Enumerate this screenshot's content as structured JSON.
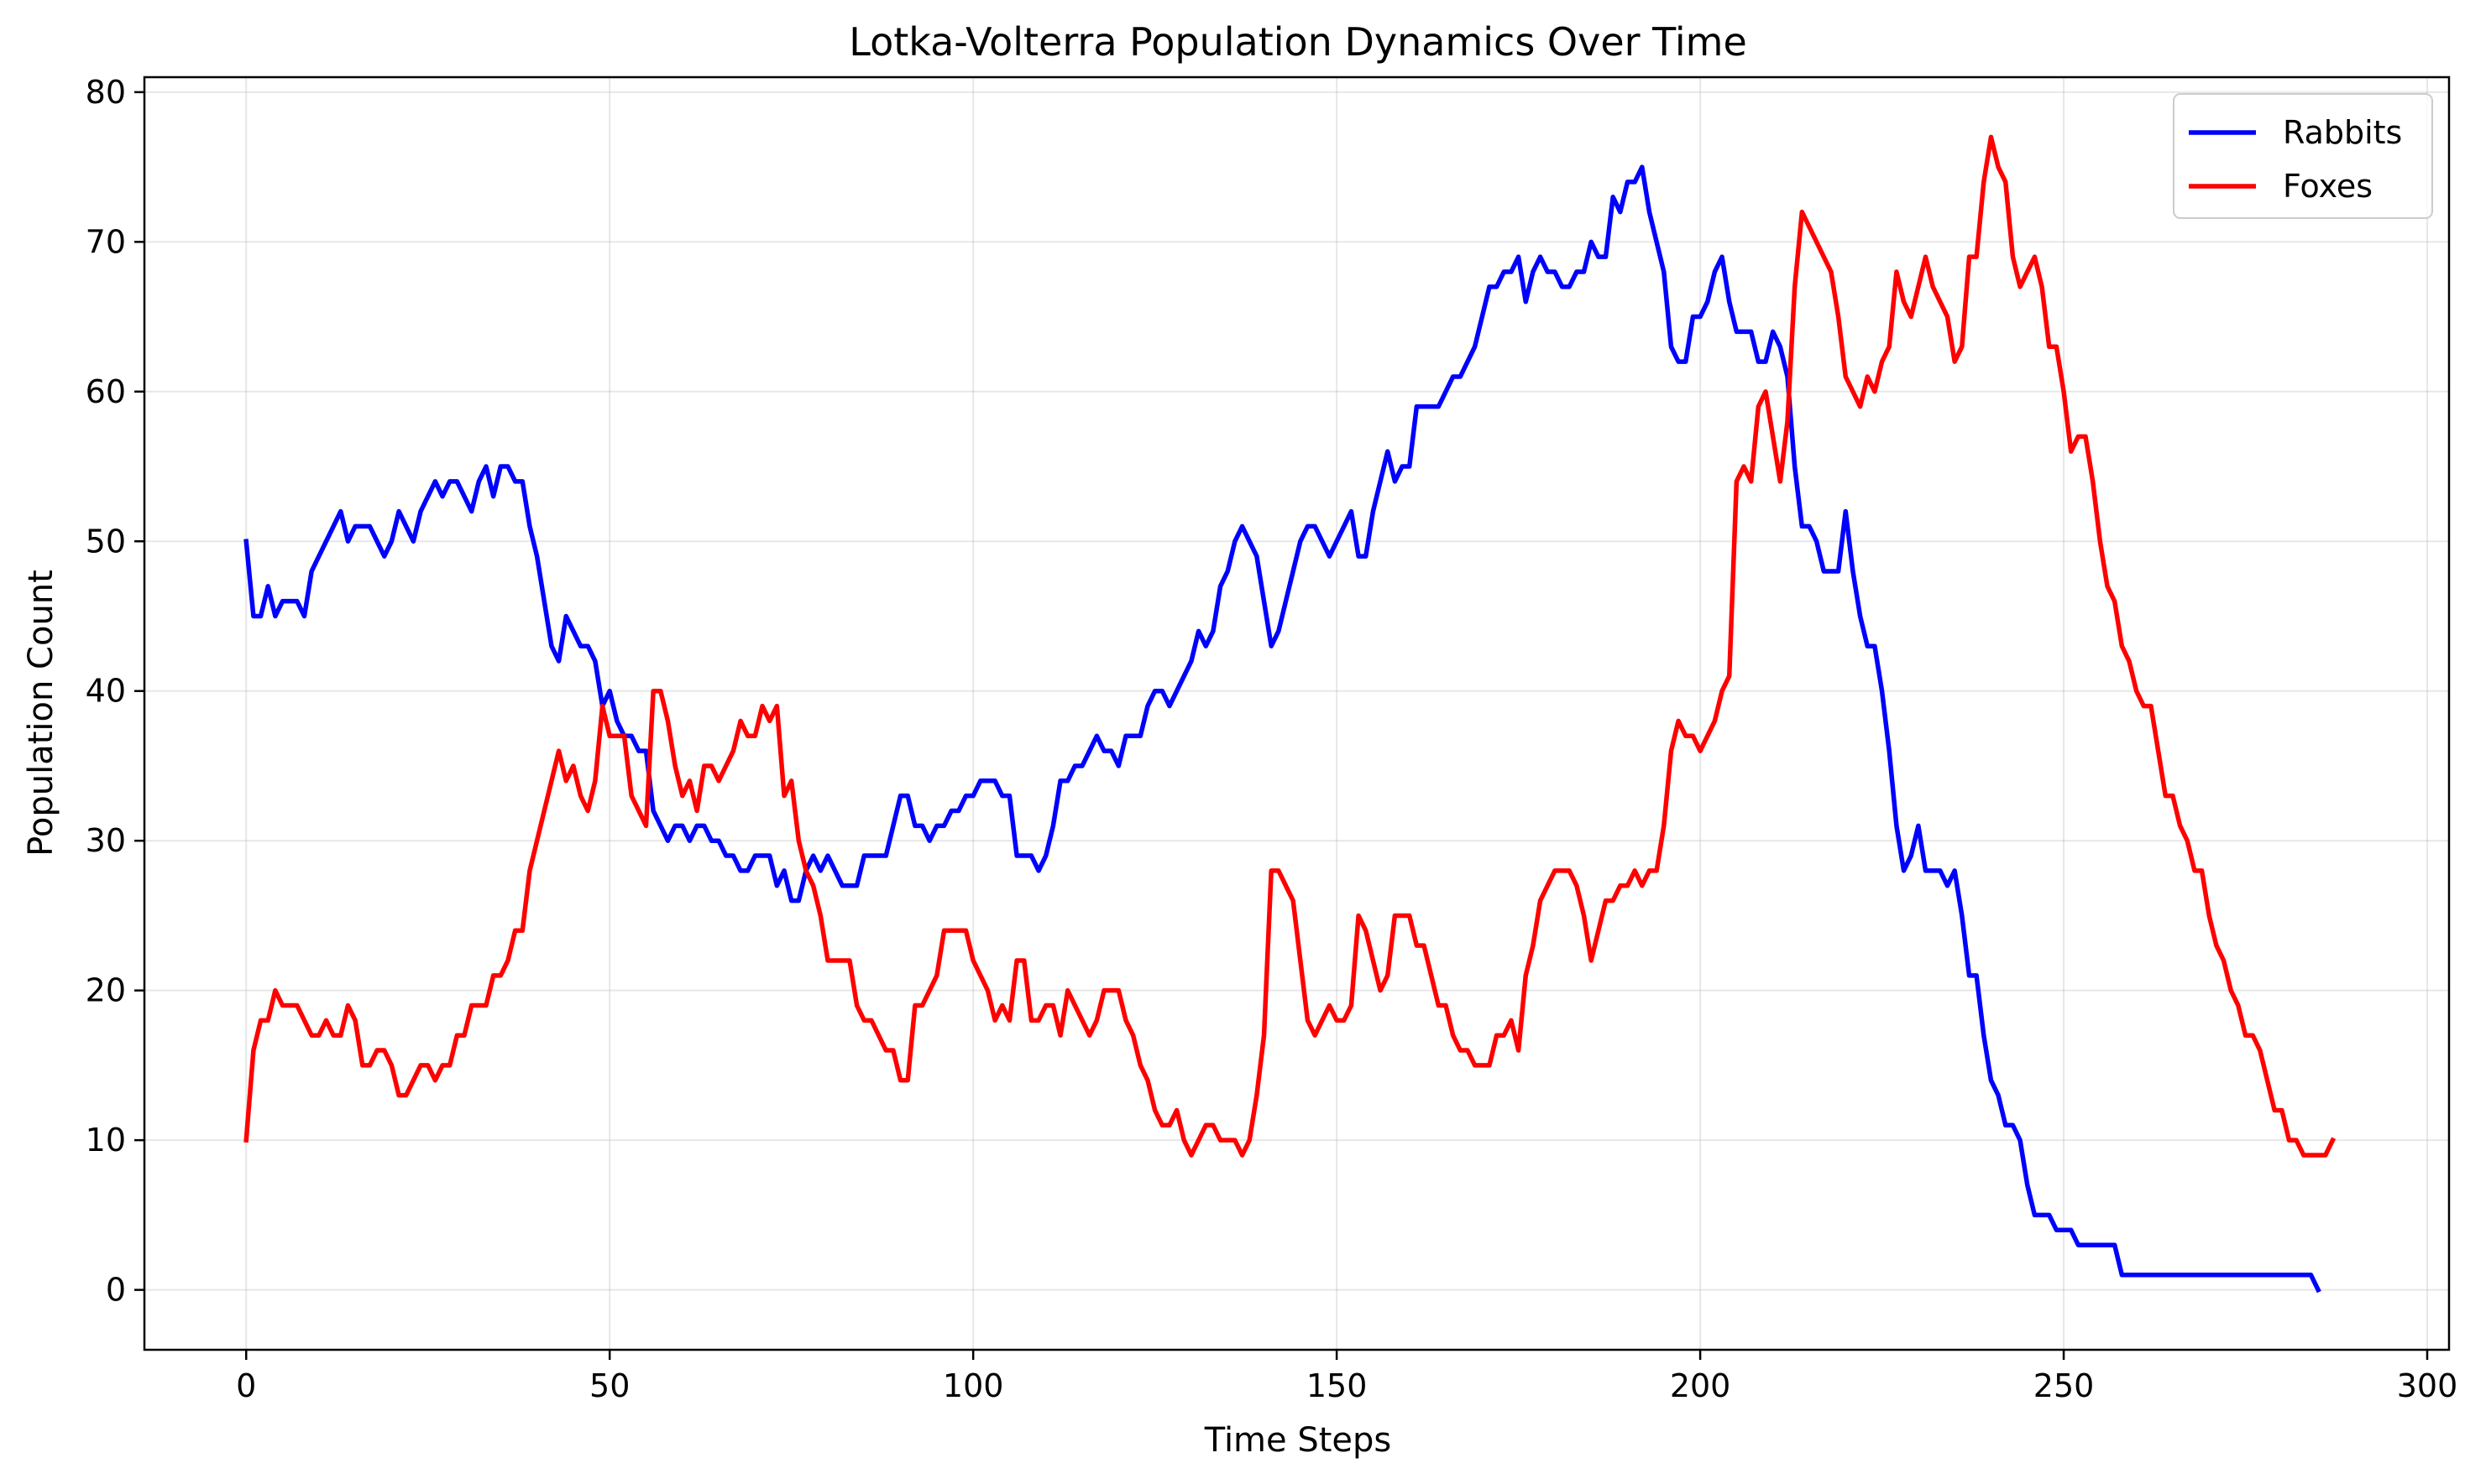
{
  "chart_data": {
    "type": "line",
    "title": "Lotka-Volterra Population Dynamics Over Time",
    "xlabel": "Time Steps",
    "ylabel": "Population Count",
    "xlim": [
      -14,
      303
    ],
    "ylim": [
      -4,
      81
    ],
    "xticks": [
      0,
      50,
      100,
      150,
      200,
      250,
      300
    ],
    "yticks": [
      0,
      10,
      20,
      30,
      40,
      50,
      60,
      70,
      80
    ],
    "grid": true,
    "legend_position": "top-right",
    "series": [
      {
        "name": "Rabbits",
        "color": "#0000ff",
        "values": [
          50,
          45,
          45,
          47,
          45,
          46,
          46,
          46,
          45,
          48,
          49,
          50,
          51,
          52,
          50,
          51,
          51,
          51,
          50,
          49,
          50,
          52,
          51,
          50,
          52,
          53,
          54,
          53,
          54,
          54,
          53,
          52,
          54,
          55,
          53,
          55,
          55,
          54,
          54,
          51,
          49,
          46,
          43,
          42,
          45,
          44,
          43,
          43,
          42,
          39,
          40,
          38,
          37,
          37,
          36,
          36,
          32,
          31,
          30,
          31,
          31,
          30,
          31,
          31,
          30,
          30,
          29,
          29,
          28,
          28,
          29,
          29,
          29,
          27,
          28,
          26,
          26,
          28,
          29,
          28,
          29,
          28,
          27,
          27,
          27,
          29,
          29,
          29,
          29,
          31,
          33,
          33,
          31,
          31,
          30,
          31,
          31,
          32,
          32,
          33,
          33,
          34,
          34,
          34,
          33,
          33,
          29,
          29,
          29,
          28,
          29,
          31,
          34,
          34,
          35,
          35,
          36,
          37,
          36,
          36,
          35,
          37,
          37,
          37,
          39,
          40,
          40,
          39,
          40,
          41,
          42,
          44,
          43,
          44,
          47,
          48,
          50,
          51,
          50,
          49,
          46,
          43,
          44,
          46,
          48,
          50,
          51,
          51,
          50,
          49,
          50,
          51,
          52,
          49,
          49,
          52,
          54,
          56,
          54,
          55,
          55,
          59,
          59,
          59,
          59,
          60,
          61,
          61,
          62,
          63,
          65,
          67,
          67,
          68,
          68,
          69,
          66,
          68,
          69,
          68,
          68,
          67,
          67,
          68,
          68,
          70,
          69,
          69,
          73,
          72,
          74,
          74,
          75,
          72,
          70,
          68,
          63,
          62,
          62,
          65,
          65,
          66,
          68,
          69,
          66,
          64,
          64,
          64,
          62,
          62,
          64,
          63,
          61,
          55,
          51,
          51,
          50,
          48,
          48,
          48,
          52,
          48,
          45,
          43,
          43,
          40,
          36,
          31,
          28,
          29,
          31,
          28,
          28,
          28,
          27,
          28,
          25,
          21,
          21,
          17,
          14,
          13,
          11,
          11,
          10,
          7,
          5,
          5,
          5,
          4,
          4,
          4,
          3,
          3,
          3,
          3,
          3,
          3,
          1,
          1,
          1,
          1,
          1,
          1,
          1,
          1,
          1,
          1,
          1,
          1,
          1,
          1,
          1,
          1,
          1,
          1,
          1,
          1,
          1,
          1,
          1,
          1,
          1,
          1,
          1,
          0
        ]
      },
      {
        "name": "Foxes",
        "color": "#ff0000",
        "values": [
          10,
          16,
          18,
          18,
          20,
          19,
          19,
          19,
          18,
          17,
          17,
          18,
          17,
          17,
          19,
          18,
          15,
          15,
          16,
          16,
          15,
          13,
          13,
          14,
          15,
          15,
          14,
          15,
          15,
          17,
          17,
          19,
          19,
          19,
          21,
          21,
          22,
          24,
          24,
          28,
          30,
          32,
          34,
          36,
          34,
          35,
          33,
          32,
          34,
          39,
          37,
          37,
          37,
          33,
          32,
          31,
          40,
          40,
          38,
          35,
          33,
          34,
          32,
          35,
          35,
          34,
          35,
          36,
          38,
          37,
          37,
          39,
          38,
          39,
          33,
          34,
          30,
          28,
          27,
          25,
          22,
          22,
          22,
          22,
          19,
          18,
          18,
          17,
          16,
          16,
          14,
          14,
          19,
          19,
          20,
          21,
          24,
          24,
          24,
          24,
          22,
          21,
          20,
          18,
          19,
          18,
          22,
          22,
          18,
          18,
          19,
          19,
          17,
          20,
          19,
          18,
          17,
          18,
          20,
          20,
          20,
          18,
          17,
          15,
          14,
          12,
          11,
          11,
          12,
          10,
          9,
          10,
          11,
          11,
          10,
          10,
          10,
          9,
          10,
          13,
          17,
          28,
          28,
          27,
          26,
          22,
          18,
          17,
          18,
          19,
          18,
          18,
          19,
          25,
          24,
          22,
          20,
          21,
          25,
          25,
          25,
          23,
          23,
          21,
          19,
          19,
          17,
          16,
          16,
          15,
          15,
          15,
          17,
          17,
          18,
          16,
          21,
          23,
          26,
          27,
          28,
          28,
          28,
          27,
          25,
          22,
          24,
          26,
          26,
          27,
          27,
          28,
          27,
          28,
          28,
          31,
          36,
          38,
          37,
          37,
          36,
          37,
          38,
          40,
          41,
          54,
          55,
          54,
          59,
          60,
          57,
          54,
          58,
          67,
          72,
          71,
          70,
          69,
          68,
          65,
          61,
          60,
          59,
          61,
          60,
          62,
          63,
          68,
          66,
          65,
          67,
          69,
          67,
          66,
          65,
          62,
          63,
          69,
          69,
          74,
          77,
          75,
          74,
          69,
          67,
          68,
          69,
          67,
          63,
          63,
          60,
          56,
          57,
          57,
          54,
          50,
          47,
          46,
          43,
          42,
          40,
          39,
          39,
          36,
          33,
          33,
          31,
          30,
          28,
          28,
          25,
          23,
          22,
          20,
          19,
          17,
          17,
          16,
          14,
          12,
          12,
          10,
          10,
          9,
          9,
          9,
          9,
          10
        ]
      }
    ]
  }
}
